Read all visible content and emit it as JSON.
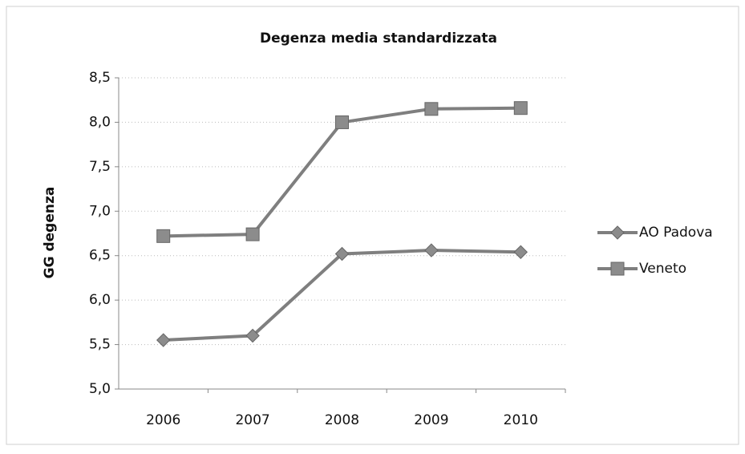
{
  "chart_data": {
    "type": "line",
    "title": "Degenza media standardizzata",
    "y_label": "GG degenza",
    "categories": [
      "2006",
      "2007",
      "2008",
      "2009",
      "2010"
    ],
    "series": [
      {
        "name": "AO Padova",
        "color": "#7f7f7f",
        "marker": "diamond",
        "values": [
          5.55,
          5.6,
          6.52,
          6.56,
          6.54
        ]
      },
      {
        "name": "Veneto",
        "color": "#7f7f7f",
        "marker": "square",
        "values": [
          6.72,
          6.74,
          8.0,
          8.15,
          8.16
        ]
      }
    ],
    "ylim": [
      5.0,
      8.5
    ],
    "yticks": [
      {
        "value": 5.0,
        "label": "5,0"
      },
      {
        "value": 5.5,
        "label": "5,5"
      },
      {
        "value": 6.0,
        "label": "6,0"
      },
      {
        "value": 6.5,
        "label": "6,5"
      },
      {
        "value": 7.0,
        "label": "7,0"
      },
      {
        "value": 7.5,
        "label": "7,5"
      },
      {
        "value": 8.0,
        "label": "8,0"
      },
      {
        "value": 8.5,
        "label": "8,5"
      }
    ],
    "grid": true,
    "legend": "right"
  }
}
